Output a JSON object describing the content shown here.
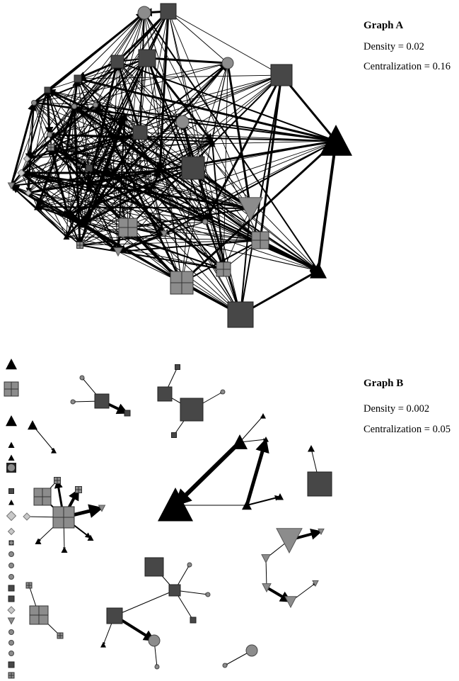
{
  "graph_a": {
    "title": "Graph A",
    "density": "Density = 0.02",
    "centralization": "Centralization = 0.16"
  },
  "graph_b": {
    "title": "Graph B",
    "density": "Density = 0.002",
    "centralization": "Centralization = 0.05"
  },
  "colors": {
    "dark_square": "#474747",
    "grey_node": "#8c8c8c",
    "light_diamond": "#c8c8c8",
    "black_triangle": "#000000",
    "edge": "#000000"
  }
}
